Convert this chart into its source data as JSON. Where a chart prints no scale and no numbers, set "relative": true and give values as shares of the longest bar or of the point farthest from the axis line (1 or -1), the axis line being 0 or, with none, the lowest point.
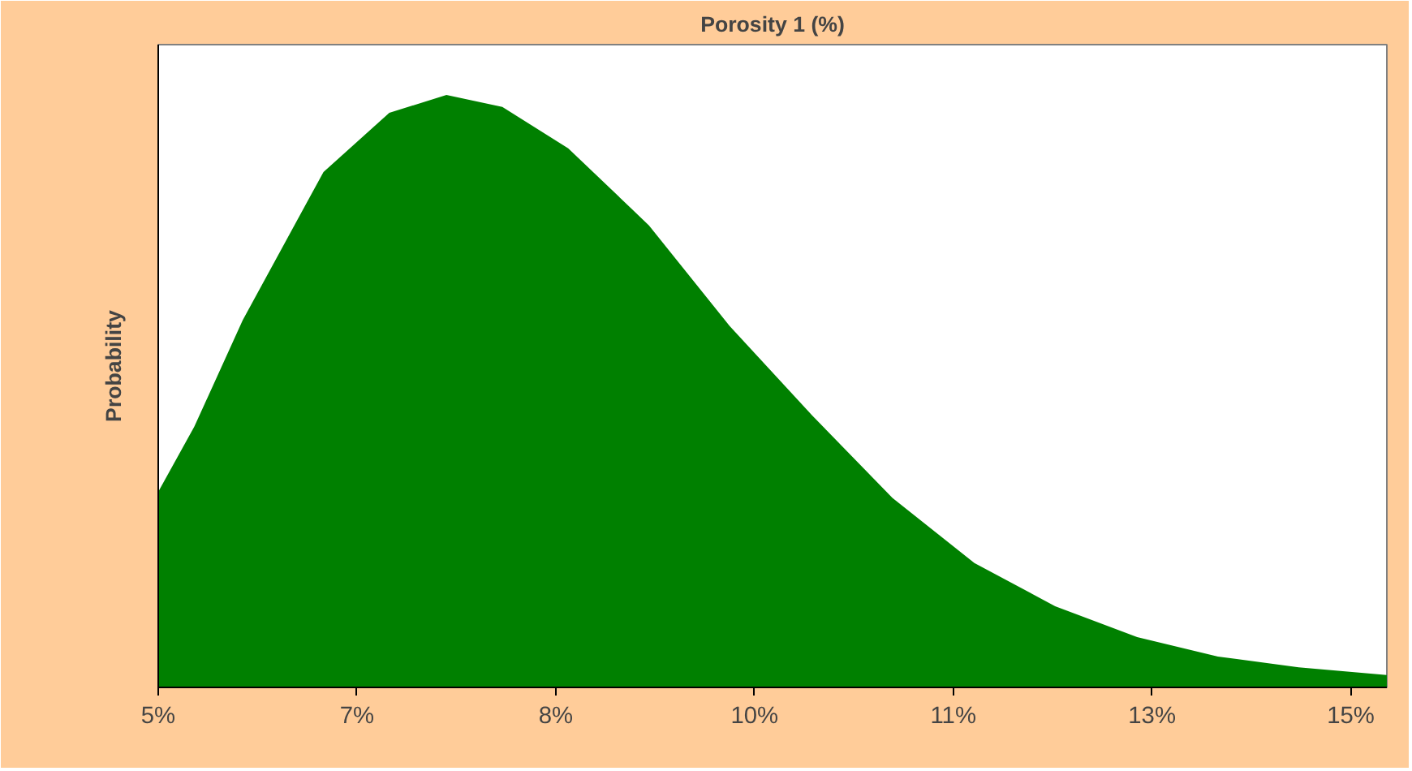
{
  "chart_data": {
    "type": "area",
    "title": "Porosity 1 (%)",
    "ylabel": "Probability",
    "relative": true,
    "x": [
      5,
      5.29,
      5.68,
      6.33,
      6.86,
      7.32,
      7.77,
      8.3,
      8.95,
      9.6,
      10.26,
      10.91,
      11.57,
      12.22,
      12.88,
      13.53,
      14.18,
      14.89
    ],
    "series": [
      {
        "color": "#008000",
        "values": [
          0.33,
          0.44,
          0.62,
          0.87,
          0.97,
          1,
          0.98,
          0.91,
          0.78,
          0.61,
          0.46,
          0.32,
          0.21,
          0.137,
          0.085,
          0.052,
          0.034,
          0.021
        ]
      }
    ],
    "xlim": [
      5,
      14.89
    ],
    "xticks": [
      {
        "value": 5,
        "label": "5%"
      },
      {
        "value": 6.6,
        "label": "7%"
      },
      {
        "value": 8.2,
        "label": "8%"
      },
      {
        "value": 9.8,
        "label": "10%"
      },
      {
        "value": 11.4,
        "label": "11%"
      },
      {
        "value": 13.0,
        "label": "13%"
      },
      {
        "value": 14.6,
        "label": "15%"
      }
    ],
    "grid": false
  }
}
